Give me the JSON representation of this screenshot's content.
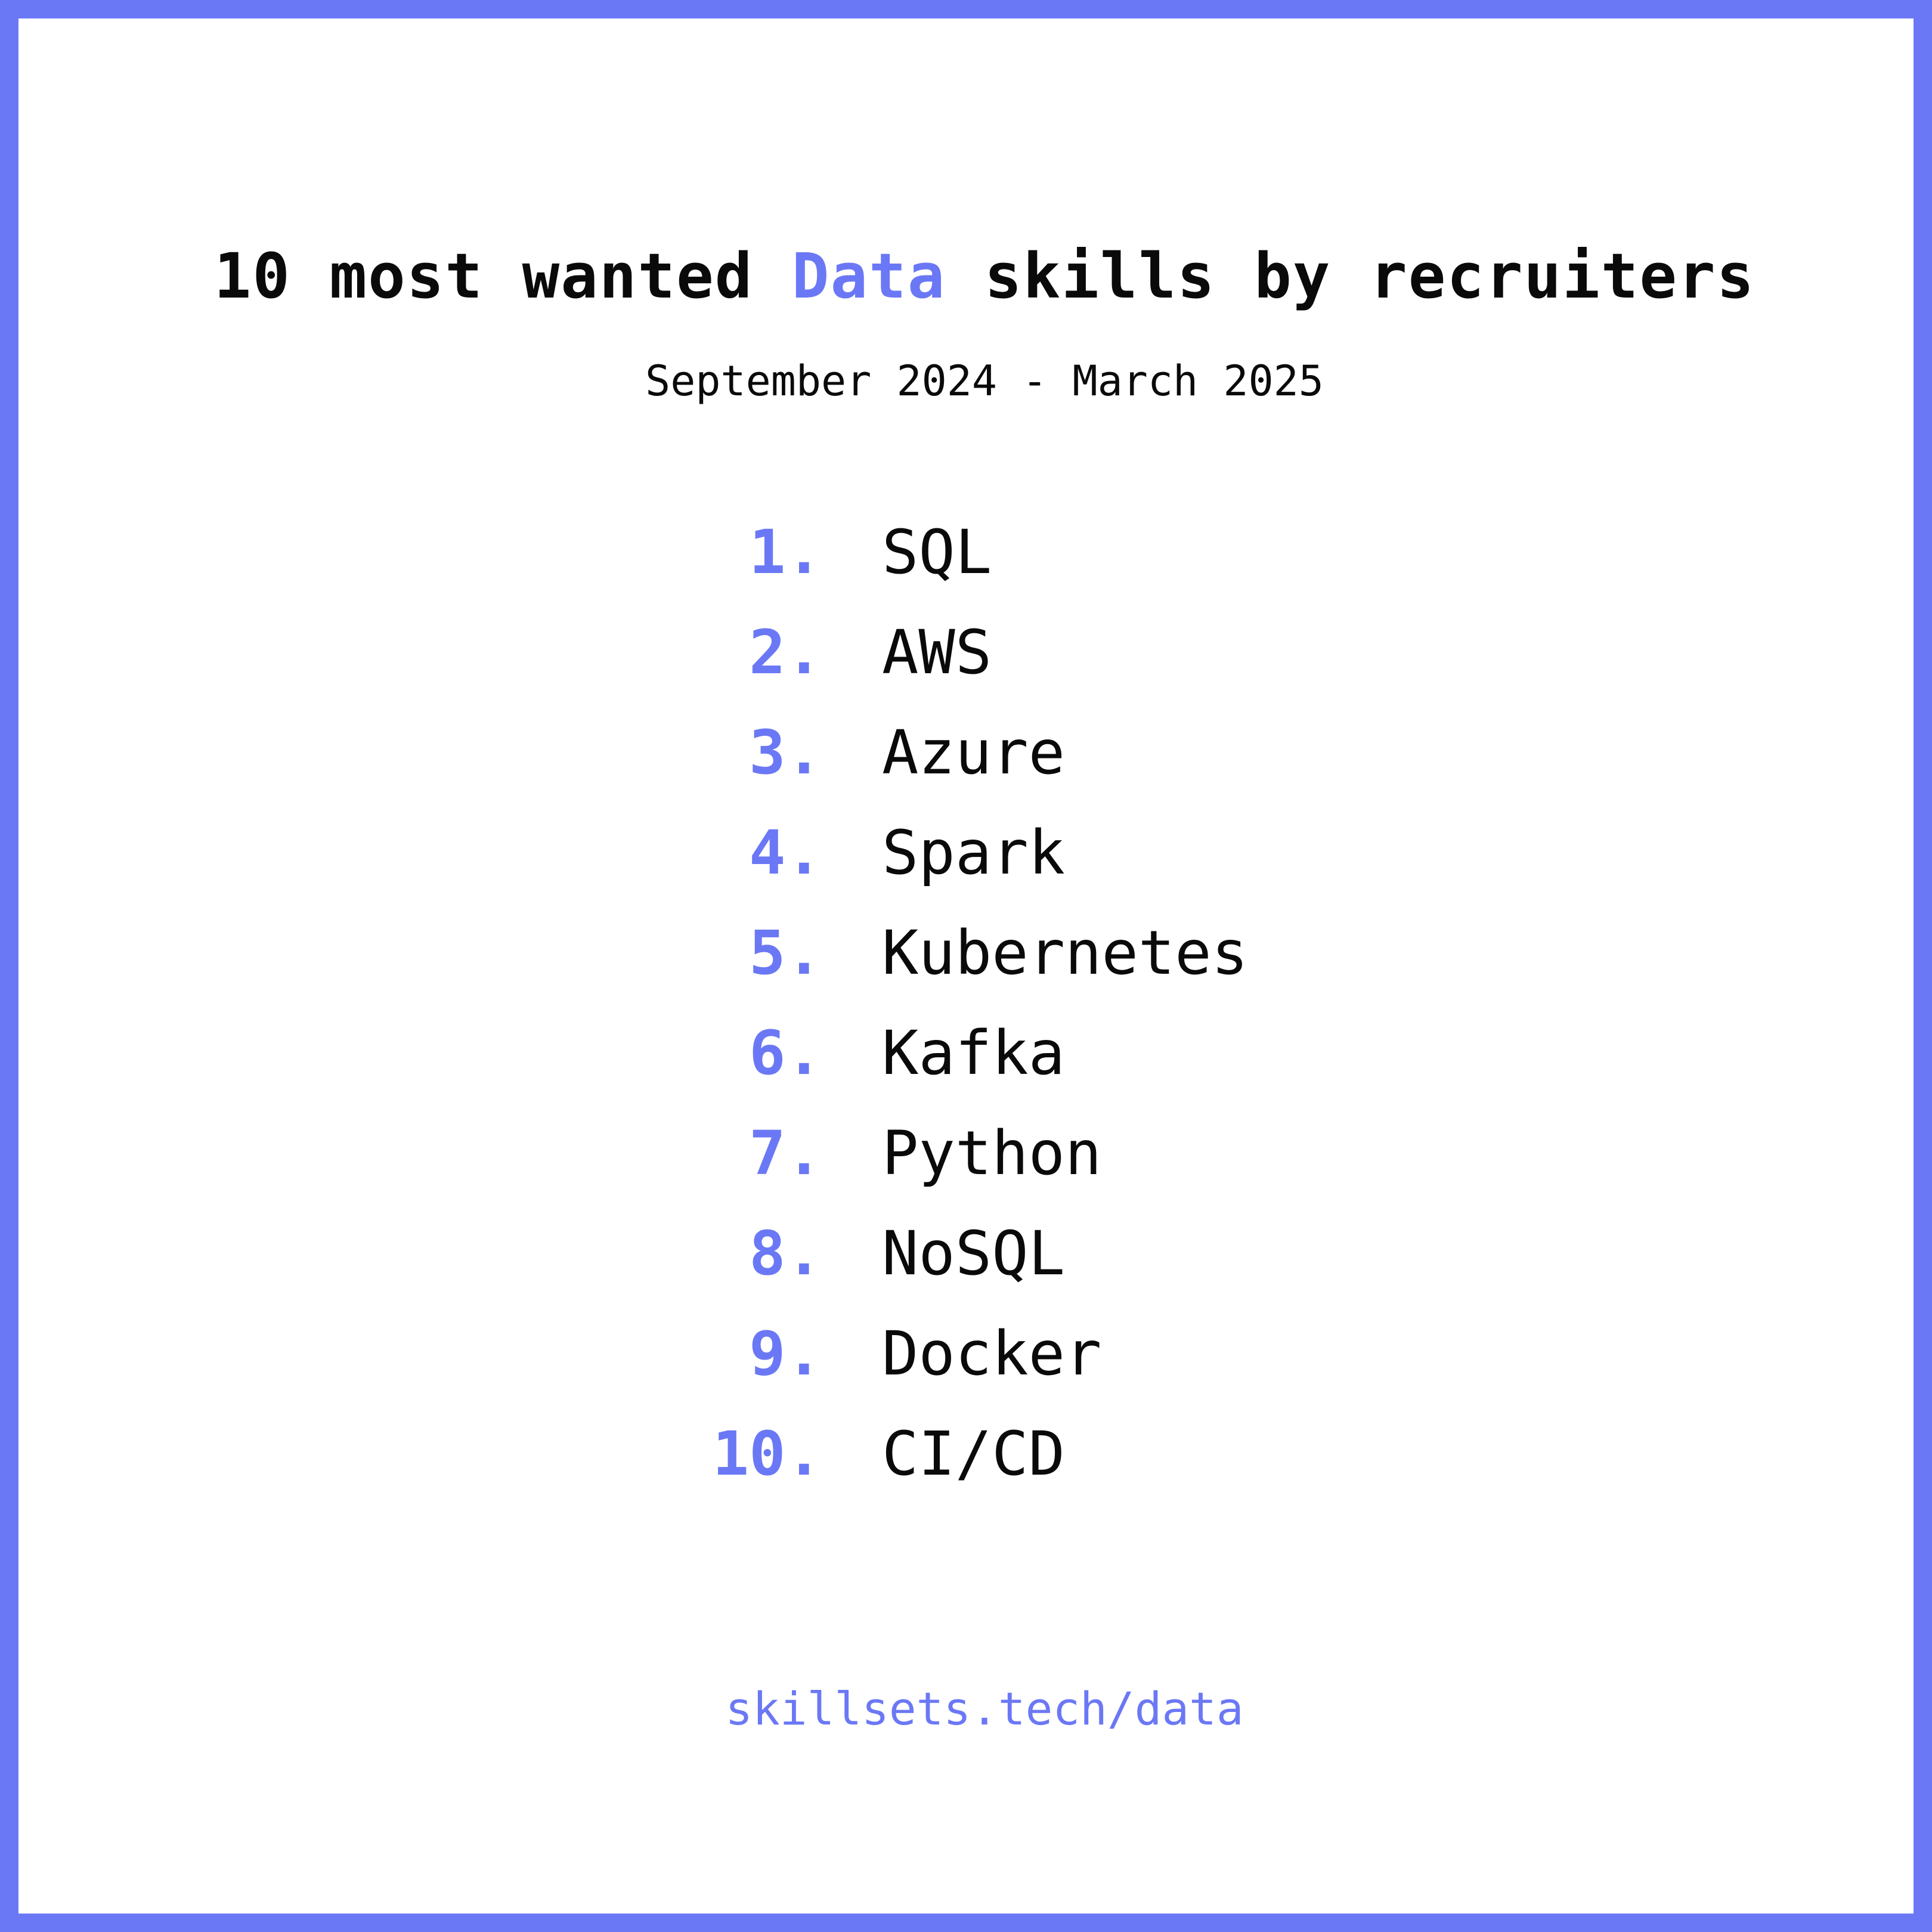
{
  "colors": {
    "accent": "#6b78f5",
    "text": "#0a0a0a",
    "background": "#ffffff"
  },
  "header": {
    "title_prefix": "10 most wanted ",
    "title_highlight": "Data",
    "title_suffix": " skills by recruiters",
    "subtitle": "September 2024 - March 2025"
  },
  "ranking": [
    {
      "rank": "1.",
      "skill": "SQL"
    },
    {
      "rank": "2.",
      "skill": "AWS"
    },
    {
      "rank": "3.",
      "skill": "Azure"
    },
    {
      "rank": "4.",
      "skill": "Spark"
    },
    {
      "rank": "5.",
      "skill": "Kubernetes"
    },
    {
      "rank": "6.",
      "skill": "Kafka"
    },
    {
      "rank": "7.",
      "skill": "Python"
    },
    {
      "rank": "8.",
      "skill": "NoSQL"
    },
    {
      "rank": "9.",
      "skill": "Docker"
    },
    {
      "rank": "10.",
      "skill": "CI/CD"
    }
  ],
  "footer": {
    "link_text": "skillsets.tech/data"
  }
}
